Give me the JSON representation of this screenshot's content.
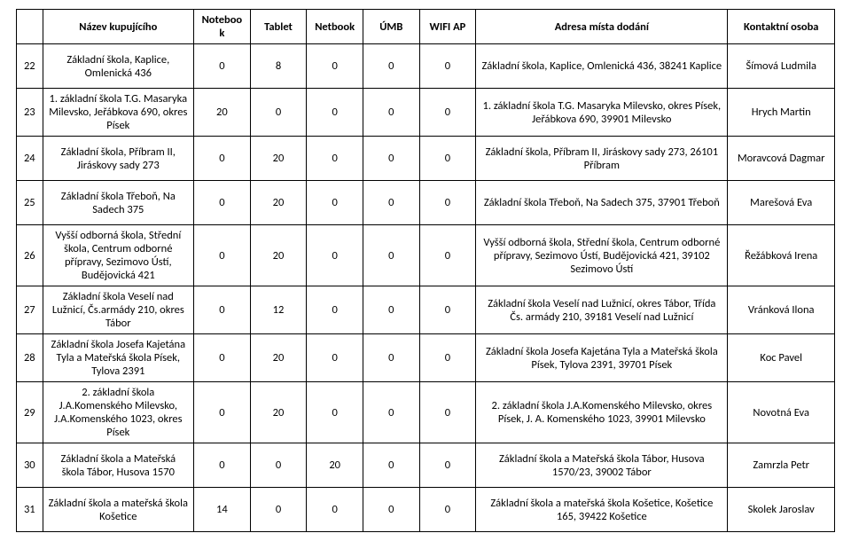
{
  "headers": {
    "nazev": "Název kupujícího",
    "nb": "Notebook",
    "tab": "Tablet",
    "net": "Netbook",
    "umb": "ÚMB",
    "wifi": "WIFI AP",
    "adresa": "Adresa místa dodání",
    "kontakt": "Kontaktní osoba"
  },
  "rows": [
    {
      "idx": "22",
      "nazev": "Základní škola, Kaplice, Omlenická 436",
      "nb": "0",
      "tab": "8",
      "net": "0",
      "umb": "0",
      "wifi": "0",
      "adr": "Základní škola, Kaplice, Omlenická 436, 38241 Kaplice",
      "kon": "Šímová Ludmila",
      "h": "row-h2"
    },
    {
      "idx": "23",
      "nazev": "1. základní škola T.G. Masaryka Milevsko, Jeřábkova 690, okres Písek",
      "nb": "20",
      "tab": "0",
      "net": "0",
      "umb": "0",
      "wifi": "0",
      "adr": "1. základní škola T.G. Masaryka Milevsko, okres Písek, Jeřábkova 690, 39901 Milevsko",
      "kon": "Hrych Martin",
      "h": "row-h2"
    },
    {
      "idx": "24",
      "nazev": "Základní škola, Příbram II, Jiráskovy sady 273",
      "nb": "0",
      "tab": "20",
      "net": "0",
      "umb": "0",
      "wifi": "0",
      "adr": "Základní škola, Příbram II, Jiráskovy sady 273, 26101 Příbram",
      "kon": "Moravcová Dagmar",
      "h": "row-h2"
    },
    {
      "idx": "25",
      "nazev": "Základní škola Třeboň, Na Sadech 375",
      "nb": "0",
      "tab": "20",
      "net": "0",
      "umb": "0",
      "wifi": "0",
      "adr": "Základní škola Třeboň, Na Sadech 375, 37901 Třeboň",
      "kon": "Marešová Eva",
      "h": "row-h2"
    },
    {
      "idx": "26",
      "nazev": "Vyšší odborná škola, Střední škola, Centrum odborné přípravy, Sezimovo Ústí, Budějovická 421",
      "nb": "0",
      "tab": "20",
      "net": "0",
      "umb": "0",
      "wifi": "0",
      "adr": "Vyšší odborná škola, Střední škola, Centrum odborné přípravy, Sezimovo Ústí, Budějovická 421, 39102 Sezimovo Ústí",
      "kon": "Řežábková Irena",
      "h": "row-h3"
    },
    {
      "idx": "27",
      "nazev": "Základní škola Veselí nad Lužnicí, Čs.armády 210, okres Tábor",
      "nb": "0",
      "tab": "12",
      "net": "0",
      "umb": "0",
      "wifi": "0",
      "adr": "Základní škola Veselí nad Lužnicí, okres Tábor, Třída Čs. armády 210, 39181 Veselí nad Lužnicí",
      "kon": "Vránková Ilona",
      "h": "row-h2"
    },
    {
      "idx": "28",
      "nazev": "Základní škola Josefa Kajetána Tyla a Mateřská škola Písek, Tylova 2391",
      "nb": "0",
      "tab": "20",
      "net": "0",
      "umb": "0",
      "wifi": "0",
      "adr": "Základní škola Josefa Kajetána Tyla a Mateřská škola Písek, Tylova 2391, 39701 Písek",
      "kon": "Koc Pavel",
      "h": "row-h2"
    },
    {
      "idx": "29",
      "nazev": "2. základní škola J.A.Komenského Milevsko, J.A.Komenského 1023, okres Písek",
      "nb": "0",
      "tab": "20",
      "net": "0",
      "umb": "0",
      "wifi": "0",
      "adr": "2. základní škola J.A.Komenského Milevsko, okres Písek, J. A. Komenského 1023, 39901 Milevsko",
      "kon": "Novotná Eva",
      "h": "row-h3"
    },
    {
      "idx": "30",
      "nazev": "Základní škola a Mateřská škola Tábor, Husova 1570",
      "nb": "0",
      "tab": "0",
      "net": "20",
      "umb": "0",
      "wifi": "0",
      "adr": "Základní škola a Mateřská škola Tábor, Husova 1570/23, 39002 Tábor",
      "kon": "Zamrzla Petr",
      "h": "row-h2"
    },
    {
      "idx": "31",
      "nazev": "Základní škola a mateřská škola Košetice",
      "nb": "14",
      "tab": "0",
      "net": "0",
      "umb": "0",
      "wifi": "0",
      "adr": "Základní škola a mateřská škola Košetice, Košetice 165, 39422 Košetice",
      "kon": "Skolek Jaroslav",
      "h": "row-h2"
    }
  ]
}
